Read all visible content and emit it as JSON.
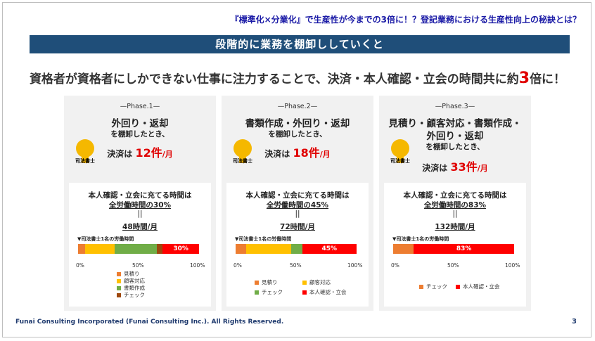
{
  "header": {
    "top_title": "『標準化×分業化』で生産性が今までの3倍に！？登記業務における生産性向上の秘訣とは？",
    "banner": "段階的に業務を棚卸ししていくと",
    "headline_pre": "資格者が資格者にしかできない仕事に注力することで、決済・本人確認・立会の時間共に約",
    "headline_num": "3",
    "headline_post": "倍に！"
  },
  "person_label": "司法書士",
  "phases": [
    {
      "phase": "—Phase.1—",
      "line1": "外回り・返却",
      "line2": "を棚卸したとき、",
      "count_pre": "決済は",
      "count_num": "12件",
      "count_unit": "/月",
      "time_line1": "本人確認・立会に充てる時間は",
      "time_line2": "全労働時間の30%",
      "eq": "||",
      "hours": "48時間/月",
      "bar_label": "▼司法書士1名の労働時間",
      "segments": [
        {
          "name": "見積り",
          "pct": 6,
          "color": "#ed7d31",
          "label": ""
        },
        {
          "name": "顧客対応",
          "pct": 24,
          "color": "#ffc000",
          "label": ""
        },
        {
          "name": "書類作成",
          "pct": 35,
          "color": "#70ad47",
          "label": ""
        },
        {
          "name": "チェック",
          "pct": 5,
          "color": "#9e480e",
          "label": ""
        },
        {
          "name": "本人確認・立会",
          "pct": 30,
          "color": "#ff0000",
          "label": "30%"
        }
      ],
      "ticks": [
        "0%",
        "50%",
        "100%"
      ],
      "legend": [
        "見積り",
        "顧客対応",
        "書類作成",
        "チェック"
      ]
    },
    {
      "phase": "—Phase.2—",
      "line1": "書類作成・外回り・返却",
      "line2": "を棚卸したとき、",
      "count_pre": "決済は",
      "count_num": "18件",
      "count_unit": "/月",
      "time_line1": "本人確認・立会に充てる時間は",
      "time_line2": "全労働時間の45%",
      "eq": "||",
      "hours": "72時間/月",
      "bar_label": "▼司法書士1名の労働時間",
      "segments": [
        {
          "name": "見積り",
          "pct": 9,
          "color": "#ed7d31",
          "label": ""
        },
        {
          "name": "顧客対応",
          "pct": 37,
          "color": "#ffc000",
          "label": ""
        },
        {
          "name": "チェック",
          "pct": 9,
          "color": "#70ad47",
          "label": ""
        },
        {
          "name": "本人確認・立会",
          "pct": 45,
          "color": "#ff0000",
          "label": "45%"
        }
      ],
      "ticks": [
        "0%",
        "50%",
        "100%"
      ],
      "legend": [
        "見積り",
        "顧客対応",
        "チェック",
        "本人確認・立会"
      ]
    },
    {
      "phase": "—Phase.3—",
      "line1": "見積り・顧客対応・書類作成・",
      "line1b": "外回り・返却",
      "line2": "を棚卸したとき、",
      "count_pre": "決済は",
      "count_num": "33件",
      "count_unit": "/月",
      "time_line1": "本人確認・立会に充てる時間は",
      "time_line2": "全労働時間の83%",
      "eq": "||",
      "hours": "132時間/月",
      "bar_label": "▼司法書士1名の労働時間",
      "segments": [
        {
          "name": "チェック",
          "pct": 17,
          "color": "#ed7d31",
          "label": ""
        },
        {
          "name": "本人確認・立会",
          "pct": 83,
          "color": "#ff0000",
          "label": "83%"
        }
      ],
      "ticks": [
        "0%",
        "50%",
        "100%"
      ],
      "legend": [
        "チェック",
        "本人確認・立会"
      ]
    }
  ],
  "footer": {
    "copyright": "Funai Consulting Incorporated (Funai Consulting Inc.). All Rights Reserved.",
    "page": "3"
  }
}
